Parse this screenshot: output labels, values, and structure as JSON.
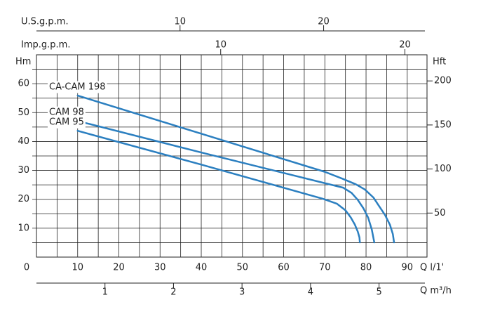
{
  "chart_data": {
    "type": "line",
    "x_label": "Q l/1'",
    "xlim": [
      0,
      94.8
    ],
    "xticks": [
      0,
      10,
      20,
      30,
      40,
      50,
      60,
      70,
      80,
      90
    ],
    "xgrid": [
      5,
      10,
      15,
      20,
      25,
      30,
      35,
      40,
      45,
      50,
      55,
      60,
      65,
      70,
      75,
      80,
      85,
      90
    ],
    "y_label": "Hm",
    "ylim": [
      0,
      70
    ],
    "yticks": [
      10,
      20,
      30,
      40,
      50,
      60
    ],
    "ygrid": [
      5,
      10,
      15,
      20,
      25,
      30,
      35,
      40,
      45,
      50,
      55,
      60,
      65
    ],
    "y2_label": "Hft",
    "y2lim": [
      0,
      229.66
    ],
    "y2ticks": [
      50,
      100,
      150,
      200
    ],
    "grid": true,
    "extra_x_axes": [
      {
        "label": "U.S.g.p.m.",
        "lim": [
          0,
          27.2
        ],
        "ticks": [
          10,
          20
        ]
      },
      {
        "label": "Imp.g.p.m.",
        "lim": [
          0,
          21.2
        ],
        "ticks": [
          10,
          20
        ]
      },
      {
        "label": "Q m³/h",
        "lim": [
          0,
          5.7
        ],
        "ticks": [
          1,
          2,
          3,
          4,
          5
        ]
      }
    ],
    "series": [
      {
        "name": "CA-CAM 198",
        "color": "#2b7fc0",
        "x": [
          10,
          40,
          70,
          74.5,
          77.5,
          79.7,
          81.8,
          83,
          84.6,
          85.8,
          86.5,
          86.8
        ],
        "values": [
          55.9,
          42.7,
          29.5,
          27,
          25.2,
          23.4,
          20.6,
          18,
          14.6,
          11.2,
          8,
          5.1
        ]
      },
      {
        "name": "CAM 98",
        "color": "#2b7fc0",
        "x": [
          10,
          40,
          70.5,
          74.5,
          76.5,
          78,
          79.4,
          80.5,
          81.4,
          82
        ],
        "values": [
          47.1,
          36.2,
          25.4,
          24,
          22.2,
          19.8,
          16.8,
          13.7,
          9.5,
          5.1
        ]
      },
      {
        "name": "CAM 95",
        "color": "#2b7fc0",
        "x": [
          10,
          40,
          69.5,
          72.9,
          75,
          76.3,
          77.3,
          78,
          78.4,
          78.5
        ],
        "values": [
          43.7,
          32,
          20.2,
          18.5,
          16.2,
          13.7,
          11.2,
          8.8,
          6.8,
          5.1
        ]
      }
    ]
  }
}
